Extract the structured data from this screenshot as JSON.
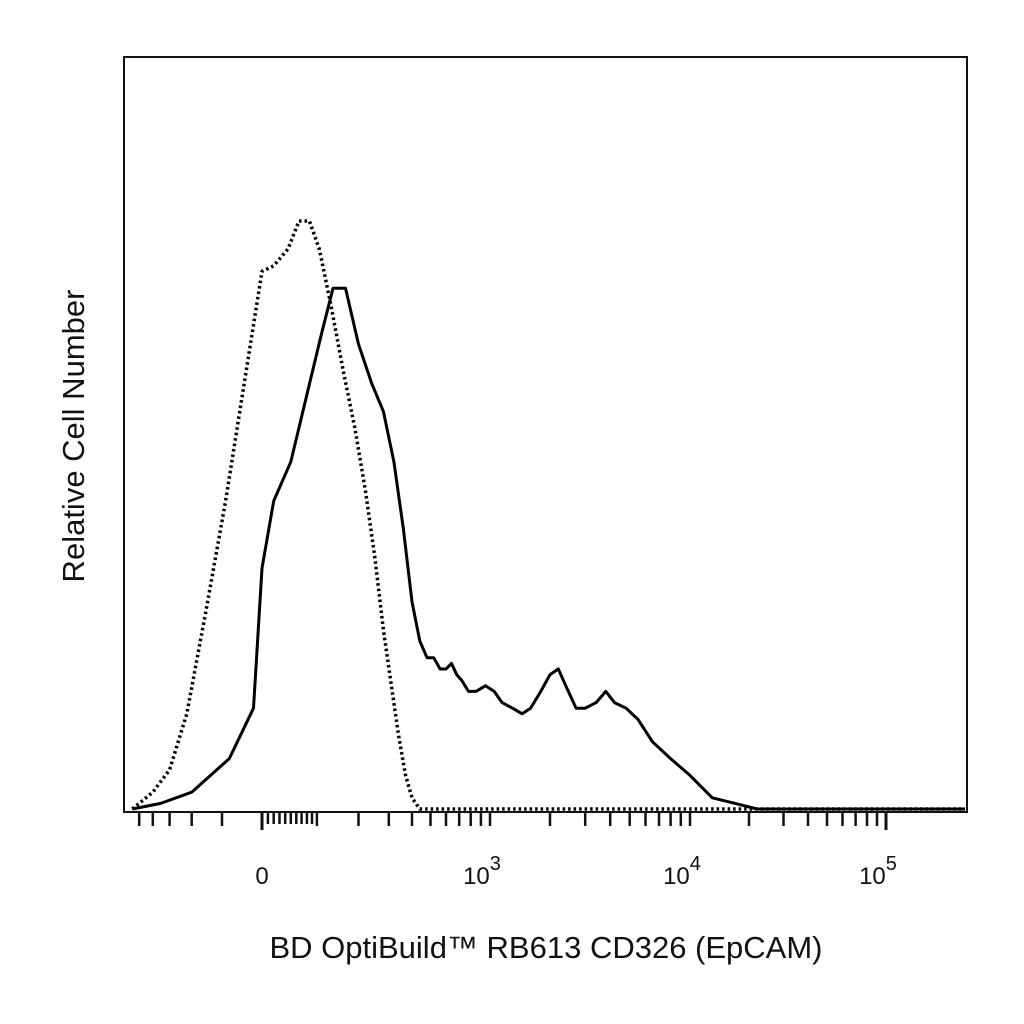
{
  "chart_data": {
    "type": "line",
    "title": "",
    "xlabel": "BD OptiBuild™ RB613 CD326 (EpCAM)",
    "ylabel": "Relative Cell Number",
    "x_scale": "biexponential",
    "xlim": [
      -600,
      200000
    ],
    "ylim": [
      0,
      100
    ],
    "grid": false,
    "legend": "none",
    "x_tick_labels": [
      {
        "label": "0",
        "value": 0
      },
      {
        "label": "10",
        "sup": "3",
        "value": 1000
      },
      {
        "label": "10",
        "sup": "4",
        "value": 10000
      },
      {
        "label": "10",
        "sup": "5",
        "value": 100000
      }
    ],
    "series": [
      {
        "style": "solid",
        "color": "#000000",
        "points": [
          [
            -560,
            0
          ],
          [
            -350,
            1
          ],
          [
            -200,
            3
          ],
          [
            -80,
            9
          ],
          [
            -20,
            18
          ],
          [
            0,
            43
          ],
          [
            20,
            55
          ],
          [
            50,
            62
          ],
          [
            80,
            74
          ],
          [
            110,
            85
          ],
          [
            135,
            93
          ],
          [
            165,
            93
          ],
          [
            200,
            83
          ],
          [
            240,
            76
          ],
          [
            280,
            71
          ],
          [
            320,
            62
          ],
          [
            360,
            50
          ],
          [
            400,
            37
          ],
          [
            440,
            30
          ],
          [
            480,
            27
          ],
          [
            520,
            27
          ],
          [
            560,
            25
          ],
          [
            600,
            25
          ],
          [
            640,
            26
          ],
          [
            680,
            24
          ],
          [
            720,
            23
          ],
          [
            780,
            21
          ],
          [
            850,
            21
          ],
          [
            950,
            22
          ],
          [
            1050,
            21
          ],
          [
            1150,
            19
          ],
          [
            1300,
            18
          ],
          [
            1450,
            17
          ],
          [
            1600,
            18
          ],
          [
            1800,
            21
          ],
          [
            2000,
            24
          ],
          [
            2200,
            25
          ],
          [
            2400,
            22
          ],
          [
            2700,
            18
          ],
          [
            3000,
            18
          ],
          [
            3400,
            19
          ],
          [
            3800,
            21
          ],
          [
            4200,
            19
          ],
          [
            4800,
            18
          ],
          [
            5500,
            16
          ],
          [
            6500,
            12
          ],
          [
            8000,
            9
          ],
          [
            10000,
            6
          ],
          [
            13000,
            2
          ],
          [
            17000,
            1
          ],
          [
            22000,
            0
          ],
          [
            200000,
            0
          ]
        ]
      },
      {
        "style": "dotted",
        "color": "#000000",
        "points": [
          [
            -560,
            0
          ],
          [
            -400,
            3
          ],
          [
            -300,
            7
          ],
          [
            -220,
            17
          ],
          [
            -150,
            35
          ],
          [
            -90,
            55
          ],
          [
            -40,
            77
          ],
          [
            0,
            96
          ],
          [
            20,
            97
          ],
          [
            45,
            100
          ],
          [
            65,
            105
          ],
          [
            85,
            105
          ],
          [
            105,
            100
          ],
          [
            130,
            90
          ],
          [
            160,
            78
          ],
          [
            190,
            68
          ],
          [
            220,
            57
          ],
          [
            250,
            45
          ],
          [
            280,
            32
          ],
          [
            310,
            22
          ],
          [
            340,
            13
          ],
          [
            370,
            6
          ],
          [
            400,
            2
          ],
          [
            440,
            0
          ],
          [
            200000,
            0
          ]
        ]
      }
    ]
  }
}
